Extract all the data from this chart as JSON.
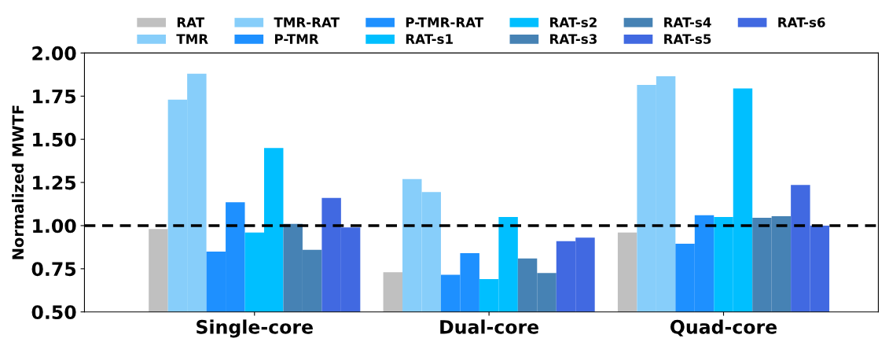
{
  "chart_data": {
    "type": "bar",
    "ylabel": "Normalized MWTF",
    "categories": [
      "Single-core",
      "Dual-core",
      "Quad-core"
    ],
    "series": [
      {
        "name": "RAT",
        "color": "#c0c0c0",
        "values": [
          0.98,
          0.73,
          0.96
        ]
      },
      {
        "name": "TMR",
        "color": "#87cefa",
        "values": [
          1.73,
          1.27,
          1.815
        ]
      },
      {
        "name": "TMR-RAT",
        "color": "#87cefa",
        "values": [
          1.88,
          1.195,
          1.865
        ]
      },
      {
        "name": "P-TMR",
        "color": "#1e90ff",
        "values": [
          0.85,
          0.715,
          0.895
        ]
      },
      {
        "name": "P-TMR-RAT",
        "color": "#1e90ff",
        "values": [
          1.135,
          0.84,
          1.06
        ]
      },
      {
        "name": "RAT-s1",
        "color": "#00bfff",
        "values": [
          0.96,
          0.69,
          1.05
        ]
      },
      {
        "name": "RAT-s2",
        "color": "#00bfff",
        "values": [
          1.45,
          1.05,
          1.795
        ]
      },
      {
        "name": "RAT-s3",
        "color": "#4682b4",
        "values": [
          1.01,
          0.81,
          1.045
        ]
      },
      {
        "name": "RAT-s4",
        "color": "#4682b4",
        "values": [
          0.86,
          0.725,
          1.055
        ]
      },
      {
        "name": "RAT-s5",
        "color": "#4169e1",
        "values": [
          1.16,
          0.91,
          1.235
        ]
      },
      {
        "name": "RAT-s6",
        "color": "#4169e1",
        "values": [
          0.99,
          0.93,
          1.0
        ]
      }
    ],
    "ylim": [
      0.5,
      2.0
    ],
    "yticks": [
      {
        "value": 0.5,
        "label": "0.50"
      },
      {
        "value": 0.75,
        "label": "0.75"
      },
      {
        "value": 1.0,
        "label": "1.00"
      },
      {
        "value": 1.25,
        "label": "1.25"
      },
      {
        "value": 1.5,
        "label": "1.50"
      },
      {
        "value": 1.75,
        "label": "1.75"
      },
      {
        "value": 2.0,
        "label": "2.00"
      }
    ],
    "ref_lines": [
      {
        "axis": "y",
        "value": 1.0,
        "color": "#000000",
        "line_style": "dashed"
      }
    ],
    "grid": false,
    "legend": "top"
  }
}
